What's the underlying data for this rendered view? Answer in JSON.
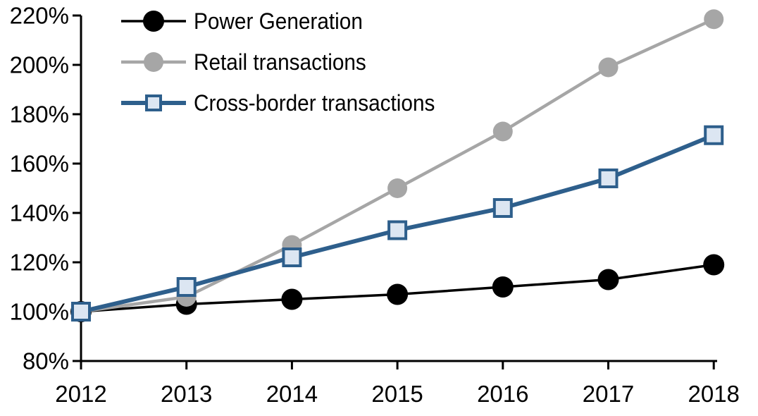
{
  "chart_data": {
    "type": "line",
    "title": "",
    "xlabel": "",
    "ylabel": "",
    "categories": [
      "2012",
      "2013",
      "2014",
      "2015",
      "2016",
      "2017",
      "2018"
    ],
    "y_axis": {
      "min": 80,
      "max": 220,
      "step": 20,
      "suffix": "%"
    },
    "ylim": [
      80,
      220
    ],
    "grid": false,
    "legend_position": "top-left",
    "background_color": "#FFFFFF",
    "axis_color": "#000000",
    "series": [
      {
        "id": "power-generation",
        "name": "Power Generation",
        "color": "#000000",
        "marker": "circle",
        "marker_fill": "#000000",
        "marker_radius": 15,
        "line_width": 3.5,
        "values": [
          100,
          103,
          105,
          107,
          110,
          113,
          119
        ]
      },
      {
        "id": "retail-transactions",
        "name": "Retail transactions",
        "color": "#A6A6A6",
        "marker": "circle",
        "marker_fill": "#A6A6A6",
        "marker_radius": 14,
        "line_width": 4.5,
        "values": [
          100,
          106,
          127,
          150,
          173,
          199,
          218.5
        ]
      },
      {
        "id": "cross-border-transactions",
        "name": "Cross-border transactions",
        "color": "#2E5F8C",
        "marker": "square",
        "marker_fill": "#DCE6F2",
        "marker_size": 24,
        "marker_stroke": 4,
        "line_width": 6,
        "values": [
          100,
          110,
          122,
          133,
          142,
          154,
          171.5
        ]
      }
    ]
  }
}
